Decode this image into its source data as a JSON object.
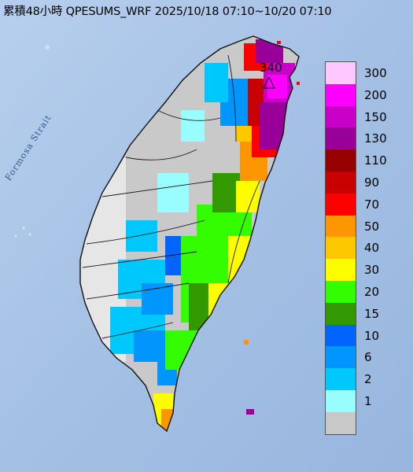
{
  "title": "累積48小時 QPESUMS_WRF 2025/10/18 07:10~10/20 07:10",
  "sea_label": "Formosa Strait",
  "max_marker": {
    "value": "340"
  },
  "colors": {
    "sea": "#a9c4e6",
    "land": "#cbcbcb",
    "boundary": "#1a1a1a"
  },
  "legend": {
    "items": [
      {
        "label": "300",
        "color": "#fdc8fd"
      },
      {
        "label": "200",
        "color": "#fd00fd"
      },
      {
        "label": "150",
        "color": "#c800c8"
      },
      {
        "label": "130",
        "color": "#990099"
      },
      {
        "label": "110",
        "color": "#960000"
      },
      {
        "label": "90",
        "color": "#c80000"
      },
      {
        "label": "70",
        "color": "#fd0000"
      },
      {
        "label": "50",
        "color": "#fd9600"
      },
      {
        "label": "40",
        "color": "#fdc800"
      },
      {
        "label": "30",
        "color": "#fdfd00"
      },
      {
        "label": "20",
        "color": "#33fd00"
      },
      {
        "label": "15",
        "color": "#339900"
      },
      {
        "label": "10",
        "color": "#0064fd"
      },
      {
        "label": "6",
        "color": "#0096fd"
      },
      {
        "label": "2",
        "color": "#00c8fd"
      },
      {
        "label": "1",
        "color": "#99fdfd"
      },
      {
        "label": "",
        "color": "#c8c8c8"
      }
    ]
  }
}
